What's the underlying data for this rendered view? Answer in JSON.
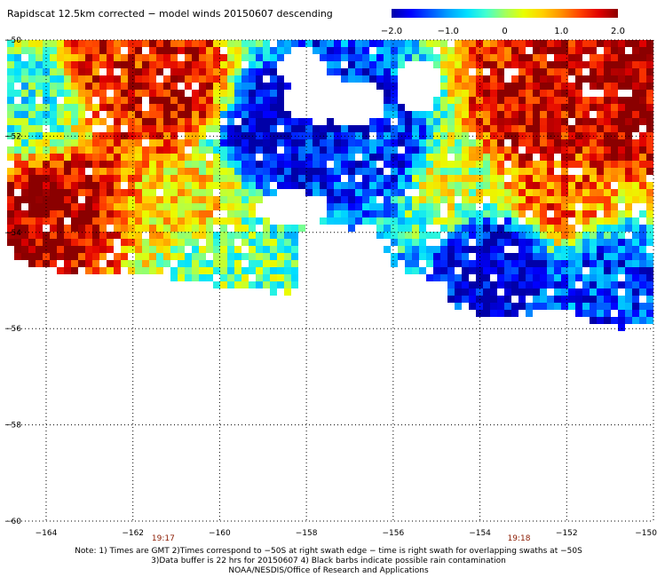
{
  "title": "Rapidscat 12.5km corrected − model winds 20150607 descending",
  "colorbar": {
    "labels": [
      "−2.0",
      "−1.0",
      "0",
      "1.0",
      "2.0"
    ],
    "values": [
      -2,
      -1,
      0,
      1,
      2
    ],
    "colors": [
      "#0000a8",
      "#0000ff",
      "#0050ff",
      "#00a0ff",
      "#00e0ff",
      "#40ffd0",
      "#a0ff60",
      "#e8ff00",
      "#ffd000",
      "#ff9000",
      "#ff4000",
      "#e00000",
      "#8b0000"
    ]
  },
  "chart_data": {
    "type": "heatmap",
    "title": "Rapidscat 12.5km corrected − model winds 20150607 descending",
    "value_range": [
      -2.0,
      2.0
    ],
    "x_ticks": [
      "−164",
      "−162",
      "−160",
      "−158",
      "−156",
      "−154",
      "−152",
      "−150"
    ],
    "x_values": [
      -164,
      -162,
      -160,
      -158,
      -156,
      -154,
      -152,
      -150
    ],
    "y_ticks": [
      "−50",
      "−52",
      "−54",
      "−56",
      "−58",
      "−60"
    ],
    "y_values": [
      -50,
      -52,
      -54,
      -56,
      -58,
      -60
    ],
    "xlim": [
      -164.9,
      -150
    ],
    "ylim": [
      -60,
      -50
    ],
    "grid": true,
    "time_labels": [
      {
        "text": "19:17",
        "lon": -161.3
      },
      {
        "text": "19:18",
        "lon": -153.1
      }
    ],
    "regions": [
      {
        "lon": -163.8,
        "lat": -53.6,
        "value": 1.9
      },
      {
        "lon": -162.5,
        "lat": -50.5,
        "value": 1.5
      },
      {
        "lon": -161.2,
        "lat": -51.0,
        "value": 1.8
      },
      {
        "lon": -158.8,
        "lat": -52.0,
        "value": -1.9
      },
      {
        "lon": -157.5,
        "lat": -51.8,
        "value": -1.7
      },
      {
        "lon": -156.0,
        "lat": -52.3,
        "value": -1.5
      },
      {
        "lon": -154.8,
        "lat": -52.8,
        "value": 0.3
      },
      {
        "lon": -153.0,
        "lat": -51.5,
        "value": 1.8
      },
      {
        "lon": -151.0,
        "lat": -51.3,
        "value": 1.9
      },
      {
        "lon": -150.3,
        "lat": -50.6,
        "value": 2.0
      },
      {
        "lon": -153.5,
        "lat": -54.6,
        "value": -1.9
      },
      {
        "lon": -151.0,
        "lat": -55.0,
        "value": -1.4
      },
      {
        "lon": -160.5,
        "lat": -53.5,
        "value": 0.6
      },
      {
        "lon": -164.3,
        "lat": -51.2,
        "value": -0.4
      },
      {
        "lon": -160.0,
        "lat": -54.5,
        "value": -0.2
      },
      {
        "lon": -152.2,
        "lat": -53.3,
        "value": 1.2
      }
    ]
  },
  "notes": [
    "Note: 1) Times are GMT 2)Times correspond to −50S at right swath edge − time is right swath for overlapping swaths at −50S",
    "3)Data buffer is 22 hrs for 20150607 4) Black barbs indicate possible rain contamination",
    "NOAA/NESDIS/Office of Research and Applications"
  ]
}
